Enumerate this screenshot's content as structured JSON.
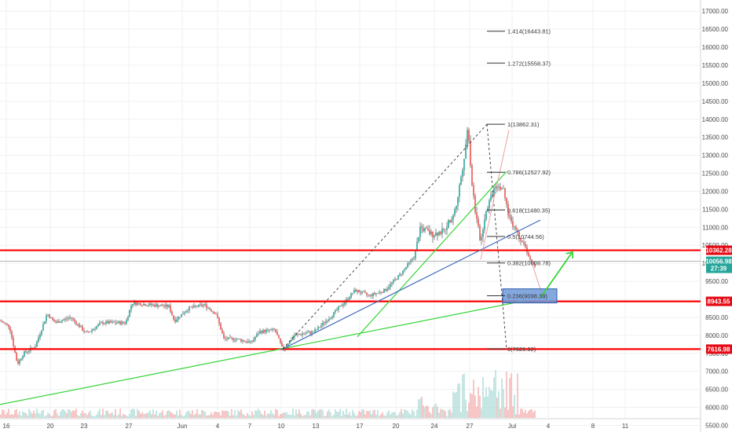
{
  "chart_data": {
    "type": "candlestick",
    "y_axis": {
      "side": "right",
      "ylim": [
        5450,
        17000
      ],
      "ticks": [
        "17000.00",
        "16500.00",
        "16000.00",
        "15500.00",
        "15000.00",
        "14500.00",
        "14000.00",
        "13500.00",
        "13000.00",
        "12500.00",
        "12000.00",
        "11500.00",
        "11000.00",
        "10500.00",
        "10000.00",
        "9500.00",
        "9000.00",
        "8500.00",
        "8000.00",
        "7500.00",
        "7000.00",
        "6500.00",
        "6000.00",
        "5500.00"
      ],
      "tick_values": [
        17000,
        16500,
        16000,
        15500,
        15000,
        14500,
        14000,
        13500,
        13000,
        12500,
        12000,
        11500,
        11000,
        10500,
        10000,
        9500,
        9000,
        8500,
        8000,
        7500,
        7000,
        6500,
        6000,
        5500
      ]
    },
    "x_axis": {
      "tick_labels": [
        "16",
        "20",
        "23",
        "27",
        "Jun",
        "4",
        "7",
        "10",
        "13",
        "17",
        "20",
        "24",
        "27",
        "Jul",
        "4",
        "8",
        "11"
      ],
      "grid": true
    },
    "price_tags": [
      {
        "label": "10362.28",
        "value": 10362.28,
        "color": "#e50914"
      },
      {
        "label": "10056.98",
        "value": 10056.98,
        "color": "#26a69a"
      },
      {
        "label": "27:39",
        "value": 9860,
        "color": "#26a69a"
      },
      {
        "label": "8943.55",
        "value": 8943.55,
        "color": "#e50914"
      },
      {
        "label": "7616.98",
        "value": 7616.98,
        "color": "#e50914"
      }
    ],
    "horizontal_lines": [
      {
        "value": 10362.28,
        "color": "#ff0000"
      },
      {
        "value": 8943.55,
        "color": "#ff0000"
      },
      {
        "value": 7616.98,
        "color": "#ff0000"
      },
      {
        "value": 10056.98,
        "color": "#9e9e9e"
      }
    ],
    "fib_levels": [
      {
        "label": "1.414(16443.81)",
        "value": 16443.81
      },
      {
        "label": "1.272(15558.37)",
        "value": 15558.37
      },
      {
        "label": "1(13862.31)",
        "value": 13862.31
      },
      {
        "label": "0.786(12527.92)",
        "value": 12527.92
      },
      {
        "label": "0.618(11480.35)",
        "value": 11480.35
      },
      {
        "label": "0.5(10744.56)",
        "value": 10744.56
      },
      {
        "label": "0.382(10008.78)",
        "value": 10008.78
      },
      {
        "label": "0.236(9098.39)",
        "value": 9098.39
      },
      {
        "label": "0(7626.92)",
        "value": 7626.92
      }
    ],
    "colors": {
      "up": "#26a69a",
      "down": "#ef5350",
      "line_red": "#ff0000",
      "line_green": "#36d436",
      "line_blue": "#3f6bbf",
      "box": "#4a78c8"
    }
  }
}
